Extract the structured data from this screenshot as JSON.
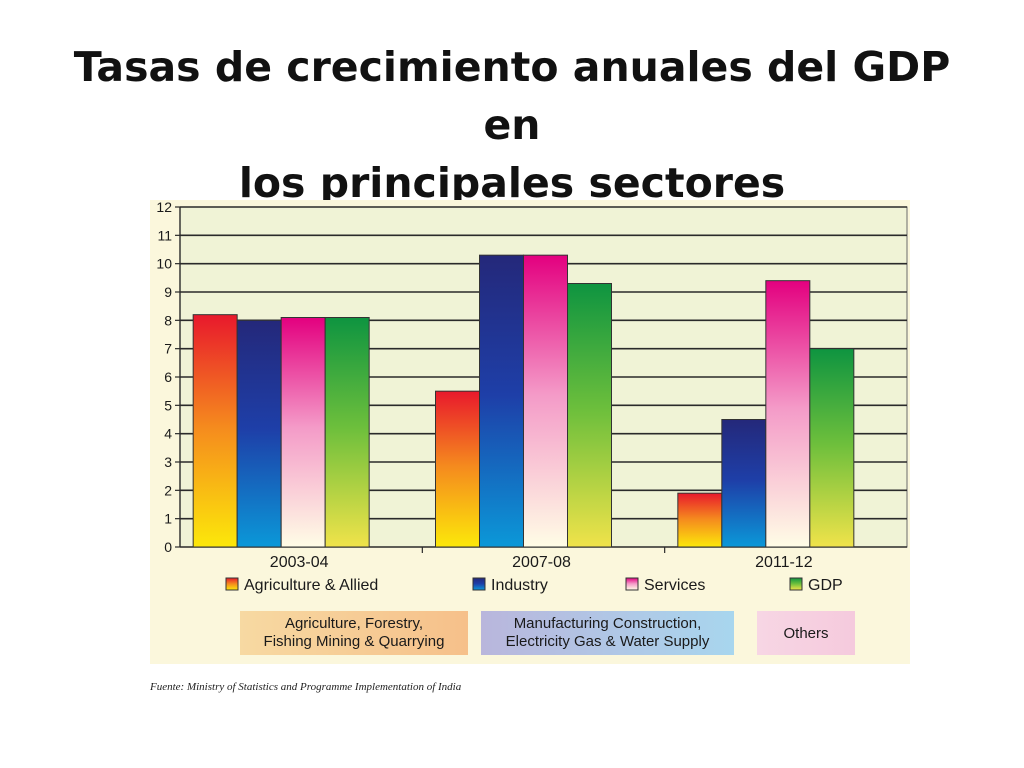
{
  "title_lines": [
    "Tasas de crecimiento anuales del GDP en",
    "los principales sectores"
  ],
  "source": "Fuente: Ministry of Statistics and Programme Implementation of India",
  "chart_data": {
    "type": "bar",
    "title": "Tasas de crecimiento anuales del GDP en los principales sectores",
    "categories": [
      "2003-04",
      "2007-08",
      "2011-12"
    ],
    "series": [
      {
        "name": "Agriculture & Allied",
        "values": [
          8.2,
          5.5,
          1.9
        ]
      },
      {
        "name": "Industry",
        "values": [
          8.0,
          10.3,
          4.5
        ]
      },
      {
        "name": "Services",
        "values": [
          8.1,
          10.3,
          9.4
        ]
      },
      {
        "name": "GDP",
        "values": [
          8.1,
          9.3,
          7.0
        ]
      }
    ],
    "ylim": [
      0,
      12
    ],
    "yticks": [
      0,
      1,
      2,
      3,
      4,
      5,
      6,
      7,
      8,
      9,
      10,
      11,
      12
    ],
    "grid": true,
    "legend_position": "bottom",
    "xlabel": "",
    "ylabel": "",
    "series_colors": {
      "Agriculture & Allied": [
        "#e8192c",
        "#f58a1e",
        "#fce80a"
      ],
      "Industry": [
        "#24287a",
        "#1e3fa8",
        "#0b98d8"
      ],
      "Services": [
        "#e3007f",
        "#f49bc8",
        "#fffde6"
      ],
      "GDP": [
        "#0e9440",
        "#6dbf3c",
        "#f0e34a"
      ]
    },
    "notes": [
      {
        "lines": [
          "Agriculture, Forestry,",
          "Fishing Mining & Quarrying"
        ],
        "colors": [
          "#f7d9a2",
          "#f6c08a"
        ]
      },
      {
        "lines": [
          "Manufacturing Construction,",
          "Electricity Gas & Water Supply"
        ],
        "colors": [
          "#b9b6dc",
          "#a8d6ee"
        ]
      },
      {
        "lines": [
          "Others"
        ],
        "colors": [
          "#f7d6e4",
          "#f5cadd"
        ]
      }
    ]
  }
}
